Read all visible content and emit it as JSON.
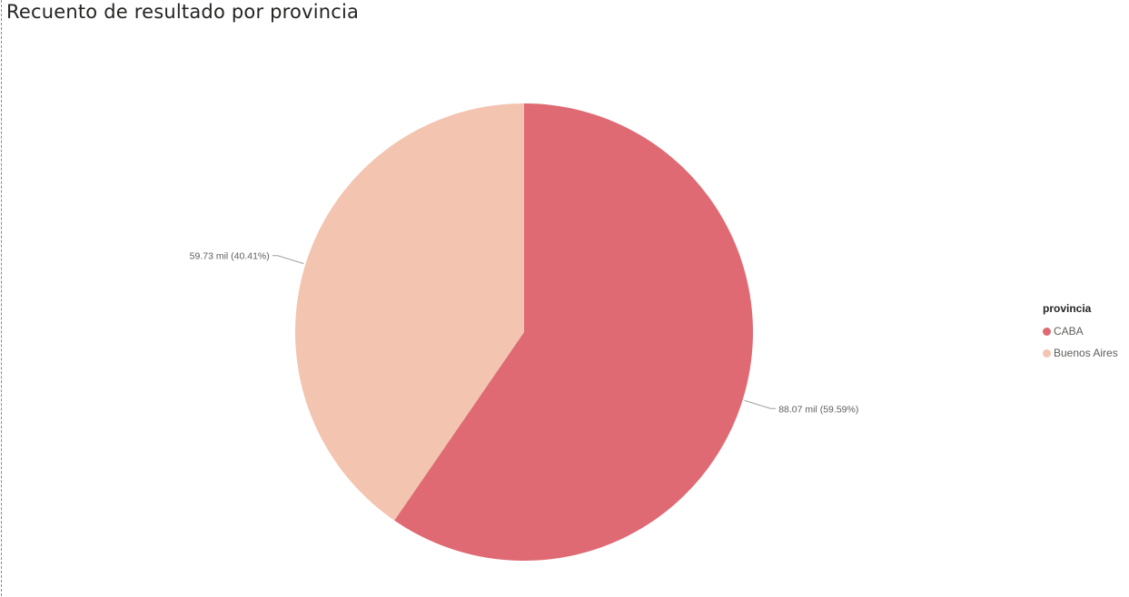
{
  "chart_data": {
    "type": "pie",
    "title": "Recuento de resultado por provincia",
    "legend": {
      "title": "provincia",
      "placement": "right"
    },
    "slices": [
      {
        "label": "CABA",
        "value": 88.07,
        "value_label": "88.07 mil (59.59%)",
        "percent": 59.59,
        "color": "#df6a73"
      },
      {
        "label": "Buenos Aires",
        "value": 59.73,
        "value_label": "59.73 mil (40.41%)",
        "percent": 40.41,
        "color": "#f3c4b0"
      }
    ]
  }
}
